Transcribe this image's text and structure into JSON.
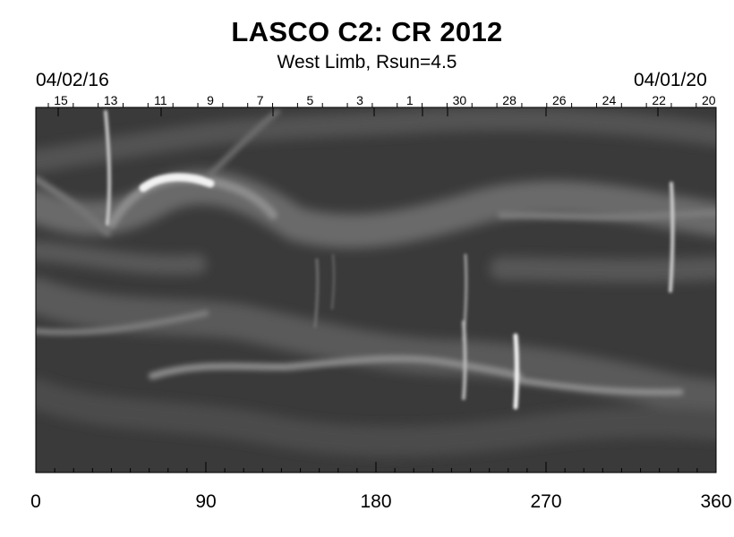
{
  "title": "LASCO C2: CR 2012",
  "subtitle": "West Limb, Rsun=4.5",
  "date_left": "04/02/16",
  "date_right": "04/01/20",
  "top_day_labels": [
    "15",
    "13",
    "11",
    "9",
    "7",
    "5",
    "3",
    "1",
    "30",
    "28",
    "26",
    "24",
    "22",
    "20"
  ],
  "chart_data": {
    "type": "heatmap",
    "description_colormap": "grayscale",
    "x_ticks": [
      0,
      90,
      180,
      270,
      360
    ],
    "x_tick_labels": [
      "0",
      "90",
      "180",
      "270",
      "360"
    ],
    "xlim": [
      0,
      360
    ],
    "top_axis_day_labels": [
      "15",
      "13",
      "11",
      "9",
      "7",
      "5",
      "3",
      "1",
      "30",
      "28",
      "26",
      "24",
      "22",
      "20"
    ],
    "top_axis_dates": [
      "04/02/16",
      "04/01/20"
    ]
  },
  "colors": {
    "background": "#ffffff",
    "axis": "#000000",
    "map_dark": "#3a3a3a",
    "map_bright": "#f4f4f4"
  }
}
